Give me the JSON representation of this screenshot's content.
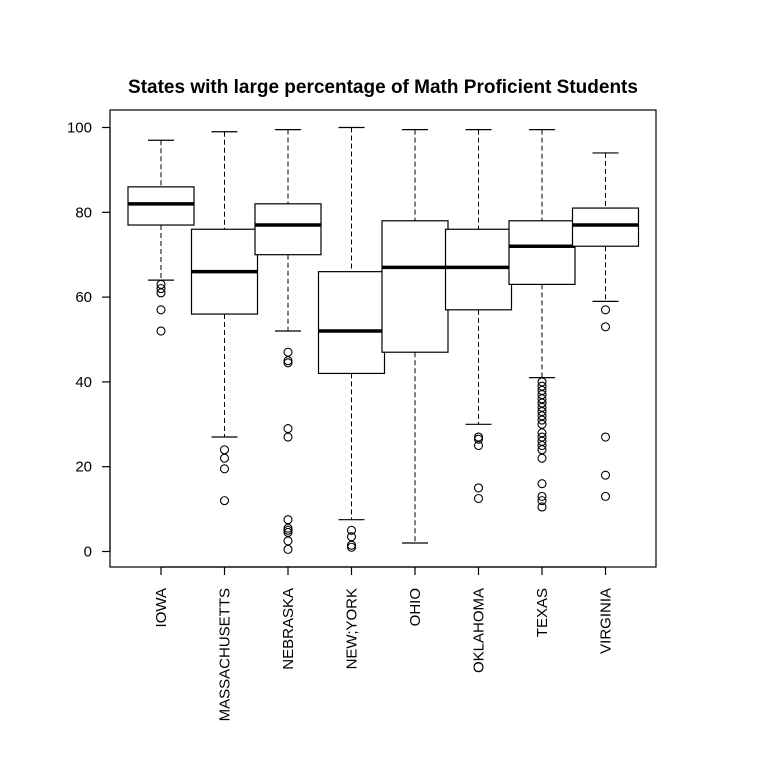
{
  "chart_data": {
    "type": "boxplot",
    "title": "States with large percentage of Math Proficient Students",
    "xlabel": "",
    "ylabel": "",
    "ylim": [
      -3,
      103
    ],
    "yticks": [
      0,
      20,
      40,
      60,
      80,
      100
    ],
    "grid": false,
    "categories": [
      "IOWA",
      "MASSACHUSETTS",
      "NEBRASKA",
      "NEW;YORK",
      "OHIO",
      "OKLAHOMA",
      "TEXAS",
      "VIRGINIA"
    ],
    "boxes": [
      {
        "category": "IOWA",
        "whisker_low": 64,
        "q1": 77,
        "median": 82,
        "q3": 86,
        "whisker_high": 97,
        "outliers": [
          52,
          57,
          61,
          62,
          63
        ]
      },
      {
        "category": "MASSACHUSETTS",
        "whisker_low": 27,
        "q1": 56,
        "median": 66,
        "q3": 76,
        "whisker_high": 99,
        "outliers": [
          12,
          19.5,
          22,
          24
        ]
      },
      {
        "category": "NEBRASKA",
        "whisker_low": 52,
        "q1": 70,
        "median": 77,
        "q3": 82,
        "whisker_high": 99.5,
        "outliers": [
          0.5,
          2.5,
          4.5,
          5,
          5.5,
          7.5,
          27,
          29,
          44.5,
          45,
          47
        ]
      },
      {
        "category": "NEW;YORK",
        "whisker_low": 7.5,
        "q1": 42,
        "median": 52,
        "q3": 66,
        "whisker_high": 100,
        "outliers": [
          1,
          1.5,
          3.5,
          5
        ]
      },
      {
        "category": "OHIO",
        "whisker_low": 2,
        "q1": 47,
        "median": 67,
        "q3": 78,
        "whisker_high": 99.5,
        "outliers": []
      },
      {
        "category": "OKLAHOMA",
        "whisker_low": 30,
        "q1": 57,
        "median": 67,
        "q3": 76,
        "whisker_high": 99.5,
        "outliers": [
          12.5,
          15,
          25,
          26.5,
          27
        ]
      },
      {
        "category": "TEXAS",
        "whisker_low": 41,
        "q1": 63,
        "median": 72,
        "q3": 78,
        "whisker_high": 99.5,
        "outliers": [
          10.5,
          12,
          13,
          16,
          22,
          24,
          25,
          26,
          27,
          28,
          30,
          31,
          32,
          33,
          34,
          35,
          36,
          37,
          38,
          39,
          40
        ]
      },
      {
        "category": "VIRGINIA",
        "whisker_low": 59,
        "q1": 72,
        "median": 77,
        "q3": 81,
        "whisker_high": 94,
        "outliers": [
          13,
          18,
          27,
          53,
          57
        ]
      }
    ]
  }
}
